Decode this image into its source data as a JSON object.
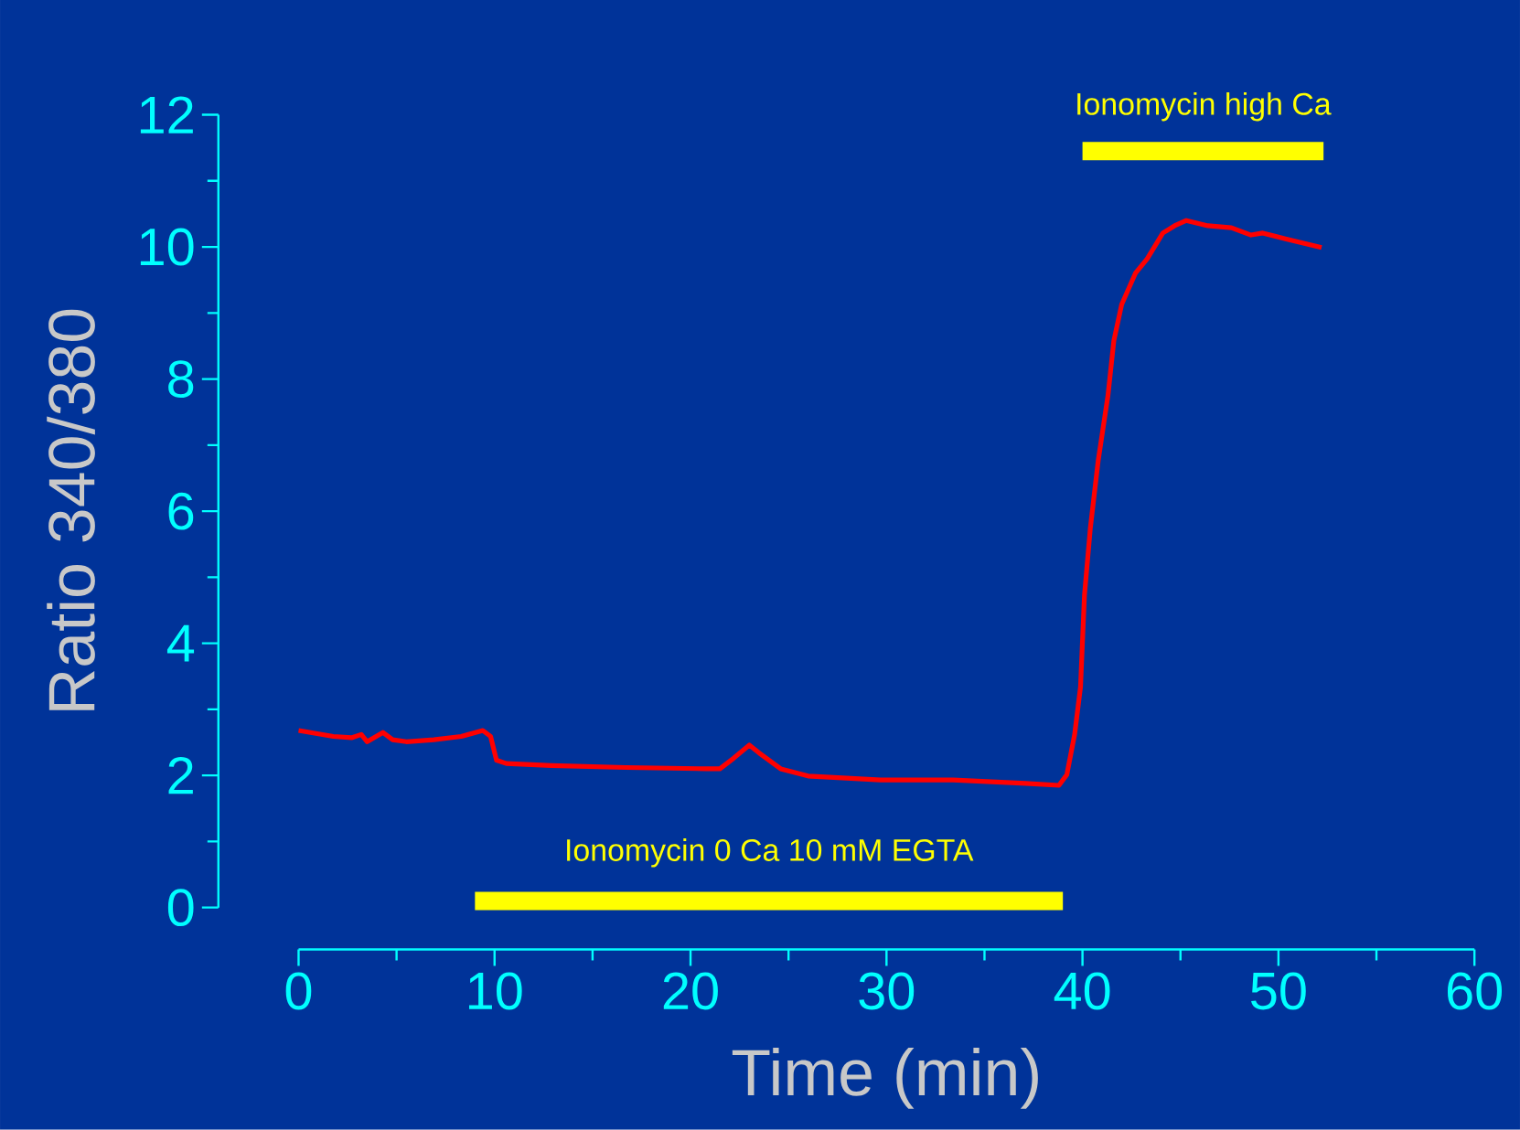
{
  "chart_data": {
    "type": "line",
    "xlabel": "Time (min)",
    "ylabel": "Ratio 340/380",
    "xlim": [
      0,
      60
    ],
    "ylim": [
      0,
      12
    ],
    "xticks": [
      0,
      10,
      20,
      30,
      40,
      50,
      60
    ],
    "yticks": [
      0,
      2,
      4,
      6,
      8,
      10,
      12
    ],
    "series": [
      {
        "color": "#ff0000",
        "x": [
          0,
          1.77,
          2.7,
          3.2,
          3.5,
          4.3,
          4.8,
          5.5,
          6.9,
          8.3,
          9.4,
          9.8,
          10.1,
          10.6,
          12.9,
          16.7,
          20.8,
          21.5,
          22.2,
          23.0,
          23.5,
          24.6,
          26.0,
          29.7,
          33.4,
          37.1,
          38.8,
          39.2,
          39.6,
          39.9,
          40.1,
          40.4,
          40.8,
          41.3,
          41.6,
          42.0,
          42.7,
          43.3,
          44.1,
          44.7,
          45.3,
          46.4,
          47.6,
          48.6,
          49.2,
          50.4,
          52.2
        ],
        "values": [
          2.68,
          2.59,
          2.57,
          2.62,
          2.51,
          2.65,
          2.54,
          2.51,
          2.54,
          2.59,
          2.68,
          2.59,
          2.23,
          2.18,
          2.15,
          2.12,
          2.1,
          2.1,
          2.26,
          2.46,
          2.34,
          2.1,
          1.99,
          1.93,
          1.93,
          1.88,
          1.85,
          2.01,
          2.62,
          3.34,
          4.72,
          5.74,
          6.76,
          7.75,
          8.58,
          9.13,
          9.6,
          9.82,
          10.21,
          10.32,
          10.4,
          10.32,
          10.29,
          10.18,
          10.21,
          10.12,
          9.99
        ]
      },
      {
        "name": "Ionomycin 0 Ca 10 mM EGTA",
        "color": "#ffff00",
        "x": [
          9,
          39
        ],
        "values": [
          0.1,
          0.1
        ]
      },
      {
        "name": "Ionomycin high Ca",
        "color": "#ffff00",
        "x": [
          40,
          52.3
        ],
        "values": [
          11.45,
          11.45
        ]
      }
    ]
  }
}
